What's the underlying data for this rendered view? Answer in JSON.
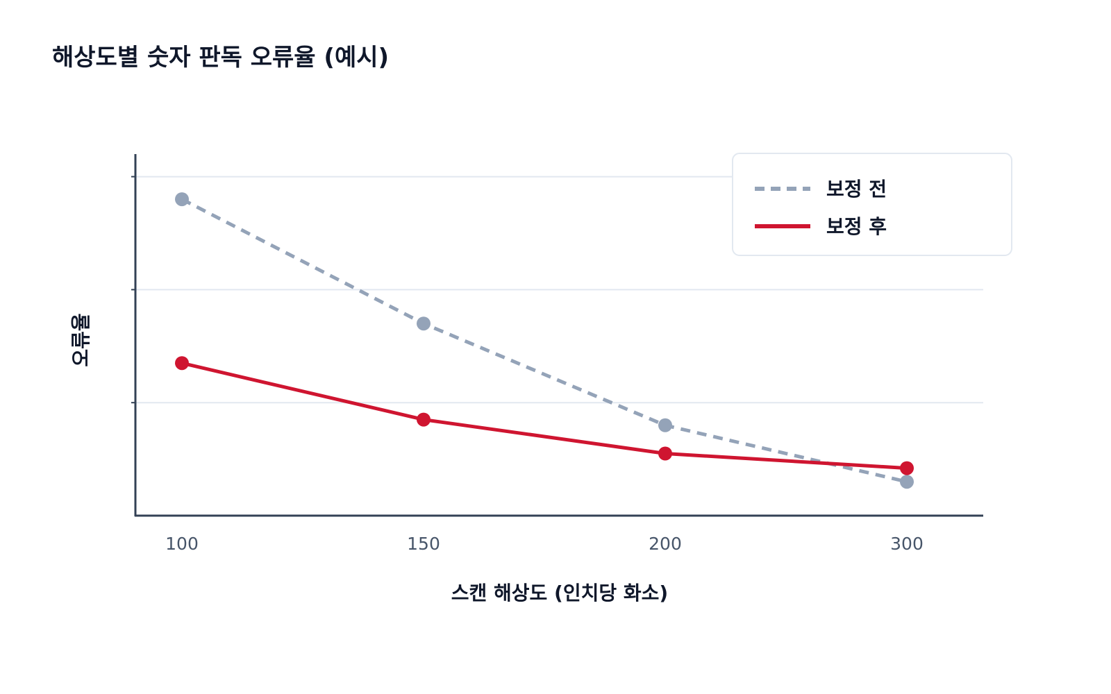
{
  "chart_data": {
    "type": "line",
    "title": "해상도별 숫자 판독 오류율 (예시)",
    "xlabel": "스캔 해상도 (인치당 화소)",
    "ylabel": "오류율",
    "categories": [
      "100",
      "150",
      "200",
      "300"
    ],
    "ylim": [
      0,
      3.2
    ],
    "y_gridlines": [
      1,
      2,
      3
    ],
    "y_ticks_labeled": false,
    "grid": true,
    "legend_position": "top-right",
    "series": [
      {
        "name": "보정 전",
        "values": [
          2.8,
          1.7,
          0.8,
          0.3
        ],
        "color": "#94a3b8",
        "style": "dashed"
      },
      {
        "name": "보정 후",
        "values": [
          1.35,
          0.85,
          0.55,
          0.42
        ],
        "color": "#cf1530",
        "style": "solid"
      }
    ],
    "colors": {
      "axis": "#334155",
      "grid": "#e2e8f0",
      "legend_border": "#e2e8f0"
    }
  }
}
